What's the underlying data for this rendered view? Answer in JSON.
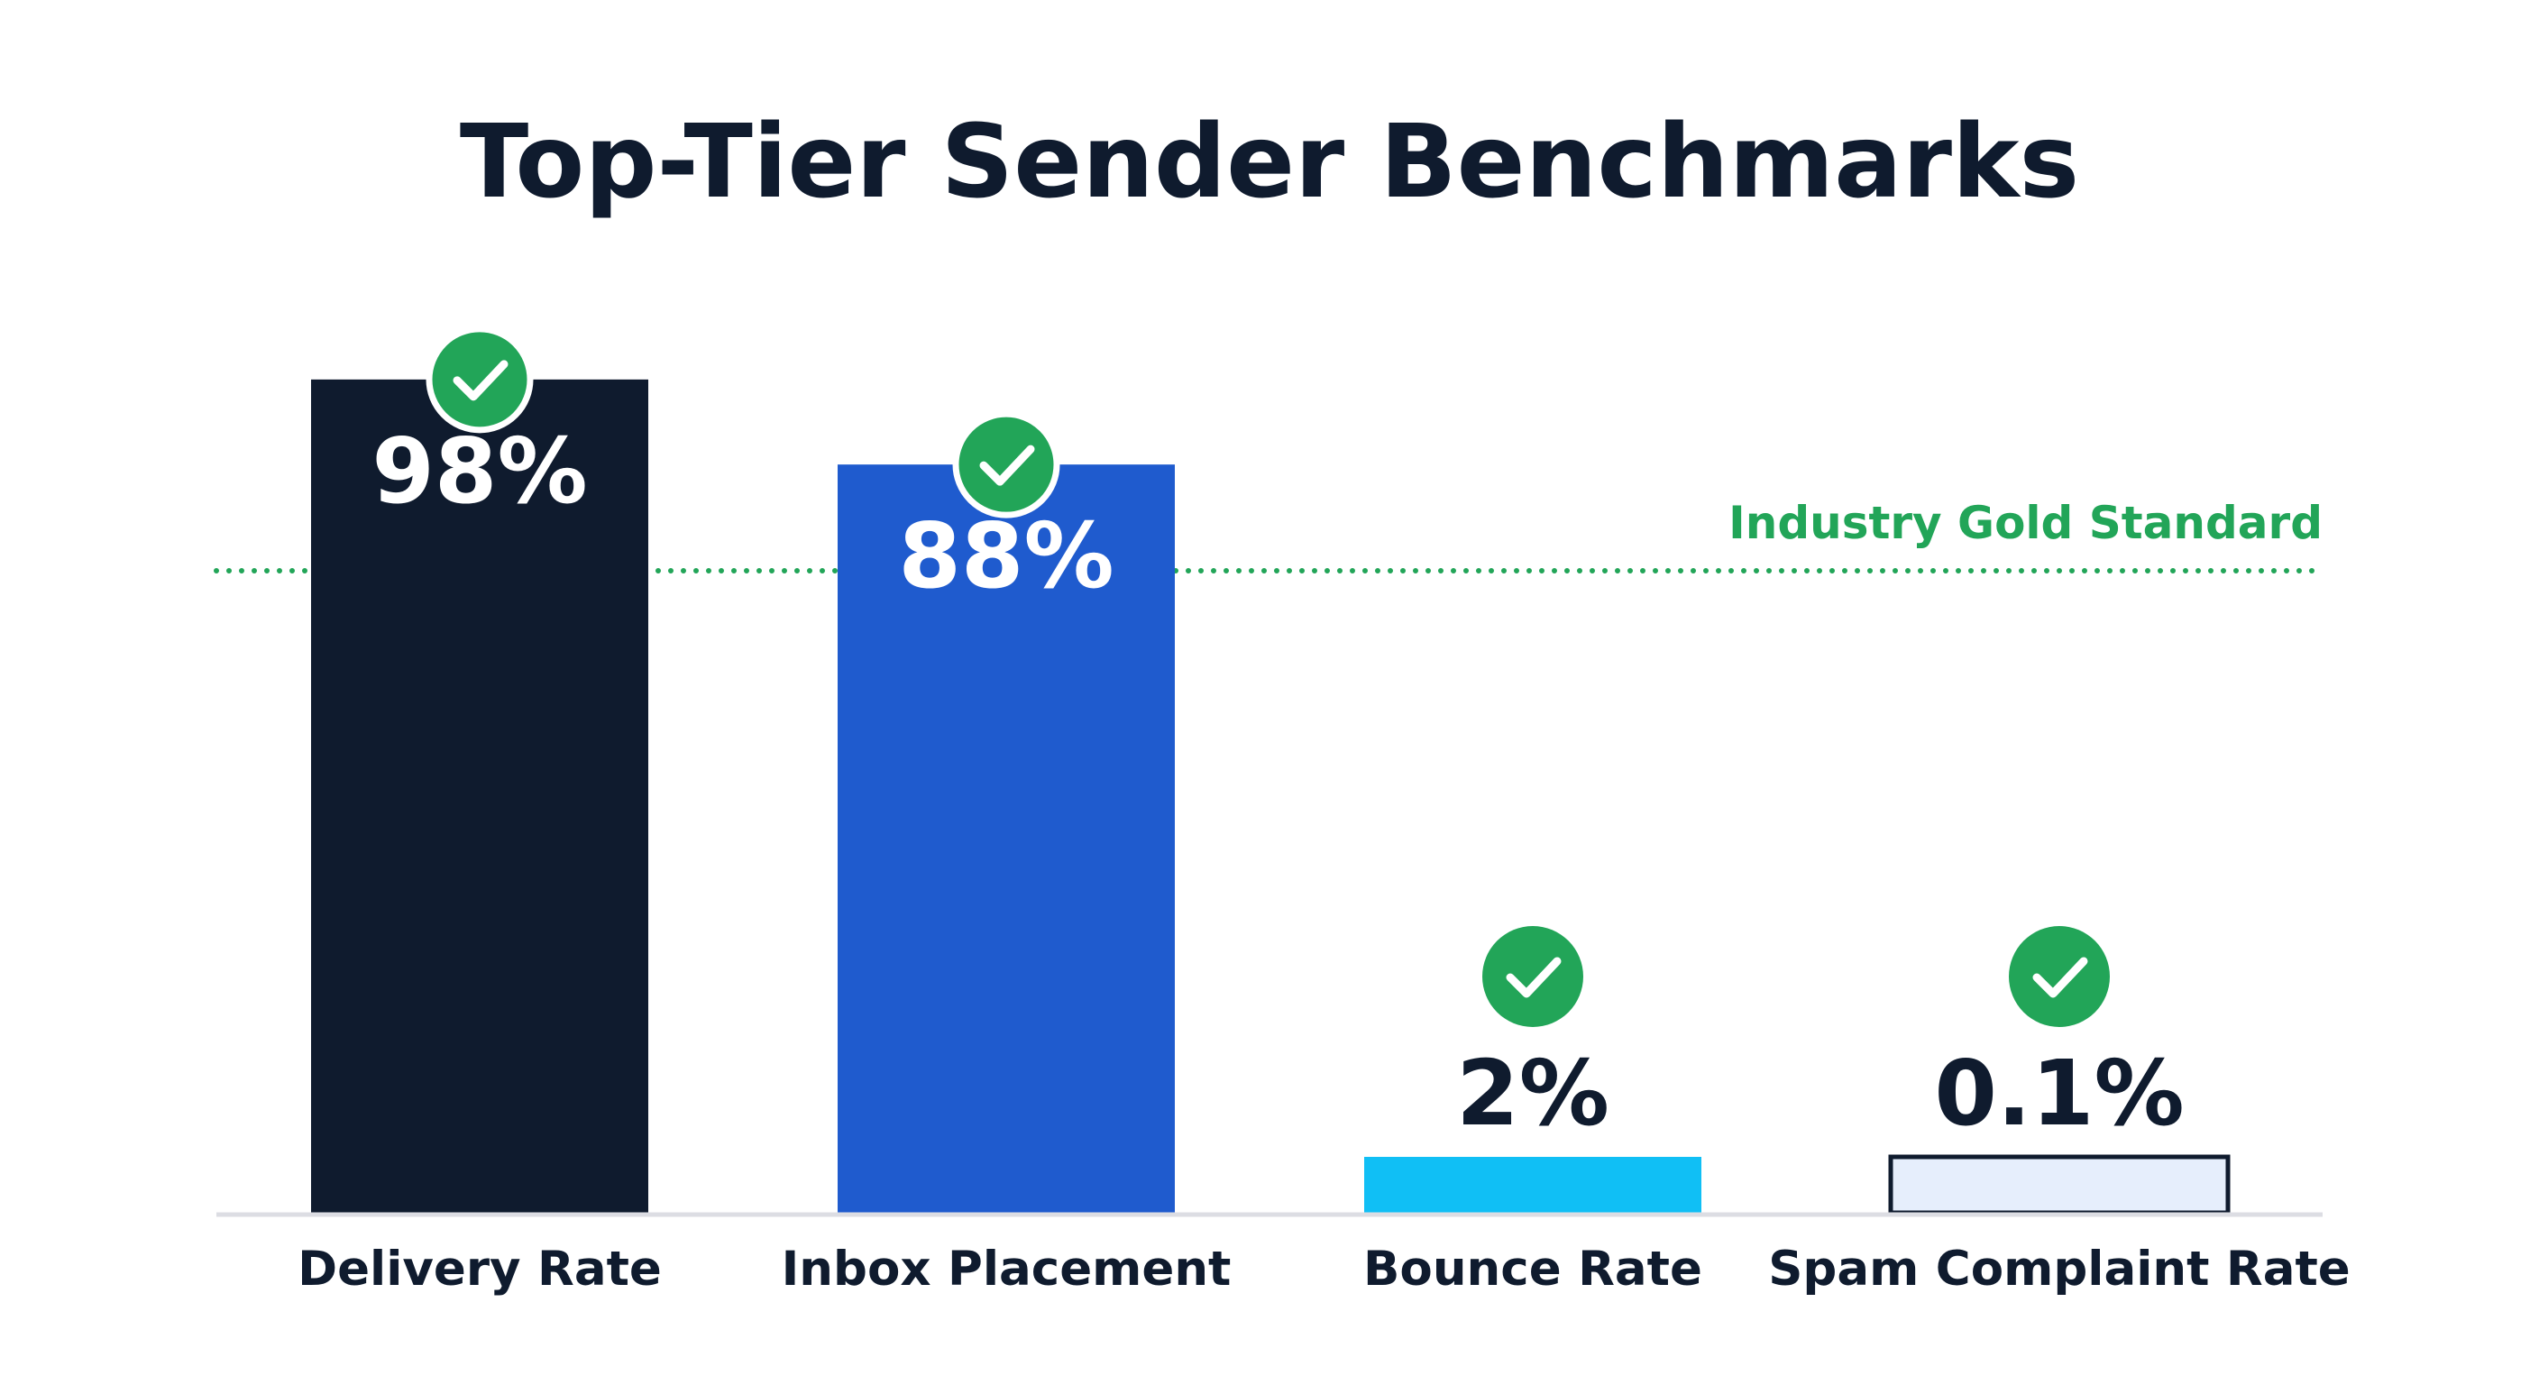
{
  "chart_data": {
    "type": "bar",
    "title": "Top-Tier Sender Benchmarks",
    "categories": [
      "Delivery Rate",
      "Inbox Placement",
      "Bounce Rate",
      "Spam Complaint Rate"
    ],
    "values": [
      98,
      88,
      2,
      0.1
    ],
    "value_labels": [
      "98%",
      "88%",
      "2%",
      "0.1%"
    ],
    "ylim": [
      0,
      100
    ],
    "grid": false,
    "reference_line": {
      "label": "Industry Gold Standard",
      "value": 75.5,
      "color": "#22a558",
      "style": "dotted"
    },
    "bar_colors": [
      "#0f1b2e",
      "#1f5bce",
      "#10bff5",
      "#e6eefc"
    ],
    "bar_outline_colors": [
      "none",
      "none",
      "none",
      "#0f1b2e"
    ],
    "value_label_colors": [
      "#ffffff",
      "#ffffff",
      "#0f1b2e",
      "#0f1b2e"
    ],
    "value_label_position": [
      "inside",
      "inside",
      "above",
      "above"
    ],
    "check_badge_color": "#22a558",
    "check_icon": "check-circle-icon",
    "axis_color": "#dcdde3",
    "text_color": "#0f1b2e"
  }
}
